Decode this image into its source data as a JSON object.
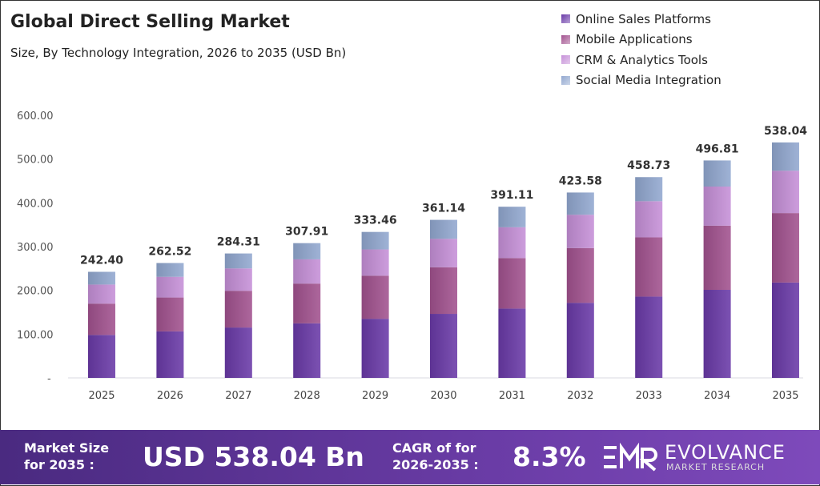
{
  "chart_data": {
    "type": "bar",
    "stacked": true,
    "title": "Global Direct Selling Market",
    "subtitle": "Size, By Technology Integration, 2026 to 2035 (USD Bn)",
    "categories": [
      "2025",
      "2026",
      "2027",
      "2028",
      "2029",
      "2030",
      "2031",
      "2032",
      "2033",
      "2034",
      "2035"
    ],
    "ylim": [
      0,
      600
    ],
    "yticks": [
      "-",
      "100.00",
      "200.00",
      "300.00",
      "400.00",
      "500.00",
      "600.00"
    ],
    "grid": false,
    "legend_position": "top-right",
    "totals": [
      "242.40",
      "262.52",
      "284.31",
      "307.91",
      "333.46",
      "361.14",
      "391.11",
      "423.58",
      "458.73",
      "496.81",
      "538.04"
    ],
    "series": [
      {
        "name": "Online Sales Platforms",
        "color": "#6a3aa8",
        "values": [
          98.2,
          106.3,
          115.1,
          124.7,
          135.1,
          146.3,
          158.4,
          171.6,
          185.8,
          201.2,
          217.9
        ]
      },
      {
        "name": "Mobile Applications",
        "color": "#a2528f",
        "values": [
          71.5,
          77.4,
          83.9,
          90.8,
          98.4,
          106.5,
          115.4,
          125.0,
          135.3,
          146.6,
          158.7
        ]
      },
      {
        "name": "CRM & Analytics Tools",
        "color": "#c690d8",
        "values": [
          43.6,
          47.3,
          51.2,
          55.4,
          60.0,
          65.0,
          70.4,
          76.2,
          82.6,
          89.4,
          96.8
        ]
      },
      {
        "name": "Social Media Integration",
        "color": "#92a8d0",
        "values": [
          29.1,
          31.5,
          34.1,
          37.0,
          40.0,
          43.3,
          46.9,
          50.8,
          55.0,
          59.6,
          64.6
        ]
      }
    ]
  },
  "banner": {
    "market_size_label_1": "Market Size",
    "market_size_label_2": "for 2035 :",
    "market_size_value": "USD 538.04 Bn",
    "cagr_label_1": "CAGR of for",
    "cagr_label_2": "2026-2035 :",
    "cagr_value": "8.3%",
    "logo_name": "EVOLVANCE",
    "logo_sub": "MARKET RESEARCH"
  }
}
